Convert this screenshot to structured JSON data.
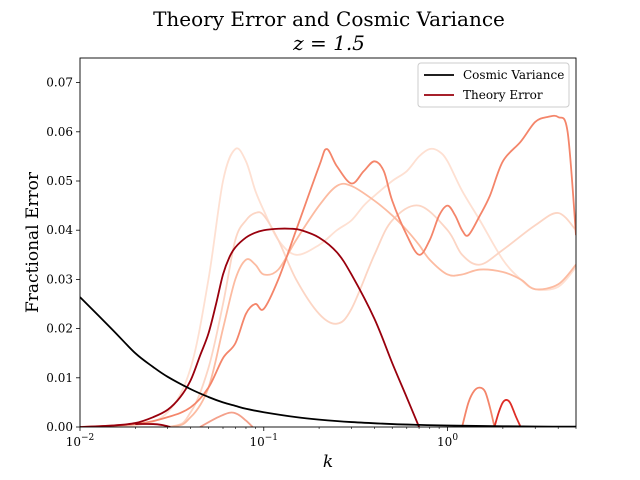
{
  "chart_data": {
    "type": "line",
    "title": "Theory Error and Cosmic Variance",
    "subtitle": "z = 1.5",
    "xlabel": "k",
    "ylabel": "Fractional Error",
    "xscale": "log",
    "xlim": [
      0.01,
      5.0
    ],
    "ylim": [
      0.0,
      0.075
    ],
    "x_ticks": [
      {
        "value": 0.01,
        "base": "10",
        "exp": "−2"
      },
      {
        "value": 0.1,
        "base": "10",
        "exp": "−1"
      },
      {
        "value": 1.0,
        "base": "10",
        "exp": "0"
      }
    ],
    "y_ticks": [
      {
        "value": 0.0,
        "label": "0.00"
      },
      {
        "value": 0.01,
        "label": "0.01"
      },
      {
        "value": 0.02,
        "label": "0.02"
      },
      {
        "value": 0.03,
        "label": "0.03"
      },
      {
        "value": 0.04,
        "label": "0.04"
      },
      {
        "value": 0.05,
        "label": "0.05"
      },
      {
        "value": 0.06,
        "label": "0.06"
      },
      {
        "value": 0.07,
        "label": "0.07"
      }
    ],
    "legend": {
      "position": "top-right",
      "entries": [
        {
          "label": "Cosmic Variance",
          "color": "#000000"
        },
        {
          "label": "Theory Error",
          "color": "#99000d"
        }
      ]
    },
    "series": [
      {
        "name": "Theory Error (lightest)",
        "color": "#fee0d2",
        "x": [
          0.01,
          0.02,
          0.03,
          0.04,
          0.05,
          0.06,
          0.07,
          0.08,
          0.09,
          0.1,
          0.12,
          0.15,
          0.2,
          0.25,
          0.3,
          0.35,
          0.4,
          0.5,
          0.6,
          0.7,
          0.8,
          0.9,
          1.0,
          1.2,
          1.5,
          2.0,
          2.5,
          3.0,
          4.0,
          5.0
        ],
        "y": [
          0.0,
          0.0003,
          0.003,
          0.012,
          0.03,
          0.05,
          0.0565,
          0.054,
          0.048,
          0.044,
          0.038,
          0.035,
          0.037,
          0.04,
          0.042,
          0.045,
          0.047,
          0.05,
          0.052,
          0.055,
          0.0565,
          0.056,
          0.054,
          0.048,
          0.042,
          0.034,
          0.03,
          0.028,
          0.0285,
          0.0325
        ]
      },
      {
        "name": "Theory Error (light)",
        "color": "#fcd5c4",
        "x": [
          0.01,
          0.03,
          0.04,
          0.05,
          0.06,
          0.07,
          0.08,
          0.09,
          0.1,
          0.12,
          0.15,
          0.2,
          0.25,
          0.3,
          0.4,
          0.5,
          0.7,
          1.0,
          1.2,
          1.5,
          2.0,
          3.0,
          4.0,
          5.0
        ],
        "y": [
          0.0,
          0.0,
          0.003,
          0.012,
          0.025,
          0.038,
          0.042,
          0.0435,
          0.043,
          0.038,
          0.03,
          0.023,
          0.021,
          0.024,
          0.035,
          0.042,
          0.045,
          0.04,
          0.035,
          0.033,
          0.036,
          0.041,
          0.0435,
          0.04
        ]
      },
      {
        "name": "Theory Error (light-mid)",
        "color": "#fcbba1",
        "x": [
          0.01,
          0.03,
          0.04,
          0.05,
          0.06,
          0.07,
          0.08,
          0.09,
          0.1,
          0.12,
          0.15,
          0.2,
          0.25,
          0.3,
          0.4,
          0.5,
          0.6,
          0.7,
          0.8,
          1.0,
          1.2,
          1.5,
          2.0,
          2.5,
          3.0,
          4.0,
          5.0
        ],
        "y": [
          0.0,
          0.0,
          0.002,
          0.008,
          0.02,
          0.03,
          0.034,
          0.033,
          0.031,
          0.032,
          0.038,
          0.045,
          0.049,
          0.049,
          0.046,
          0.043,
          0.04,
          0.037,
          0.034,
          0.031,
          0.031,
          0.032,
          0.0315,
          0.03,
          0.028,
          0.029,
          0.033
        ]
      },
      {
        "name": "Theory Error (mid)",
        "color": "#f4856a",
        "x": [
          0.01,
          0.02,
          0.03,
          0.04,
          0.05,
          0.06,
          0.07,
          0.08,
          0.09,
          0.1,
          0.12,
          0.15,
          0.2,
          0.22,
          0.25,
          0.3,
          0.35,
          0.4,
          0.45,
          0.5,
          0.6,
          0.7,
          0.8,
          0.9,
          1.0,
          1.1,
          1.2,
          1.3,
          1.5,
          1.7,
          2.0,
          2.5,
          3.0,
          3.5,
          4.0,
          4.5,
          5.0
        ],
        "y": [
          0.0,
          0.0006,
          0.002,
          0.004,
          0.008,
          0.014,
          0.017,
          0.023,
          0.025,
          0.024,
          0.03,
          0.04,
          0.053,
          0.0565,
          0.053,
          0.0495,
          0.052,
          0.054,
          0.052,
          0.046,
          0.039,
          0.035,
          0.038,
          0.043,
          0.045,
          0.043,
          0.04,
          0.039,
          0.043,
          0.047,
          0.054,
          0.058,
          0.062,
          0.063,
          0.063,
          0.06,
          0.039
        ]
      },
      {
        "name": "Theory Error (bump A)",
        "color": "#f4a08a",
        "x": [
          0.045,
          0.055,
          0.065,
          0.072,
          0.08,
          0.087
        ],
        "y": [
          0.0,
          0.0018,
          0.0029,
          0.0026,
          0.0013,
          0.0
        ]
      },
      {
        "name": "Theory Error (bump B)",
        "color": "#f4856a",
        "x": [
          1.2,
          1.3,
          1.4,
          1.5,
          1.6,
          1.7,
          1.8
        ],
        "y": [
          0.0,
          0.005,
          0.0074,
          0.008,
          0.0072,
          0.004,
          0.0
        ]
      },
      {
        "name": "Theory Error (bump C)",
        "color": "#de2d26",
        "x": [
          1.8,
          1.9,
          2.0,
          2.1,
          2.2,
          2.35,
          2.5
        ],
        "y": [
          0.0,
          0.003,
          0.005,
          0.0055,
          0.0048,
          0.0022,
          0.0
        ]
      },
      {
        "name": "Theory Error",
        "color": "#99000d",
        "x": [
          0.01,
          0.015,
          0.02,
          0.025,
          0.03,
          0.035,
          0.04,
          0.045,
          0.05,
          0.055,
          0.06,
          0.065,
          0.07,
          0.08,
          0.09,
          0.1,
          0.12,
          0.14,
          0.16,
          0.2,
          0.25,
          0.3,
          0.4,
          0.5,
          0.6,
          0.7
        ],
        "y": [
          0.0,
          0.0003,
          0.0008,
          0.002,
          0.0035,
          0.006,
          0.0095,
          0.0145,
          0.019,
          0.025,
          0.031,
          0.0345,
          0.0365,
          0.0385,
          0.0395,
          0.04,
          0.0403,
          0.0403,
          0.04,
          0.0385,
          0.0355,
          0.031,
          0.022,
          0.013,
          0.006,
          0.0
        ]
      },
      {
        "name": "Theory Error (tail)",
        "color": "#99000d",
        "x": [
          0.02,
          0.025,
          0.028,
          0.031
        ],
        "y": [
          0.0006,
          0.0006,
          0.0004,
          0.0
        ]
      },
      {
        "name": "Cosmic Variance",
        "color": "#000000",
        "x": [
          0.01,
          0.015,
          0.02,
          0.025,
          0.03,
          0.04,
          0.05,
          0.06,
          0.07,
          0.08,
          0.1,
          0.15,
          0.2,
          0.3,
          0.5,
          0.7,
          1.0,
          2.0,
          3.0,
          5.0
        ],
        "y": [
          0.0264,
          0.0198,
          0.015,
          0.0122,
          0.0102,
          0.0077,
          0.0061,
          0.005,
          0.0043,
          0.0037,
          0.003,
          0.002,
          0.0015,
          0.001,
          0.0006,
          0.00043,
          0.0003,
          0.00015,
          0.0001,
          6e-05
        ]
      }
    ]
  }
}
